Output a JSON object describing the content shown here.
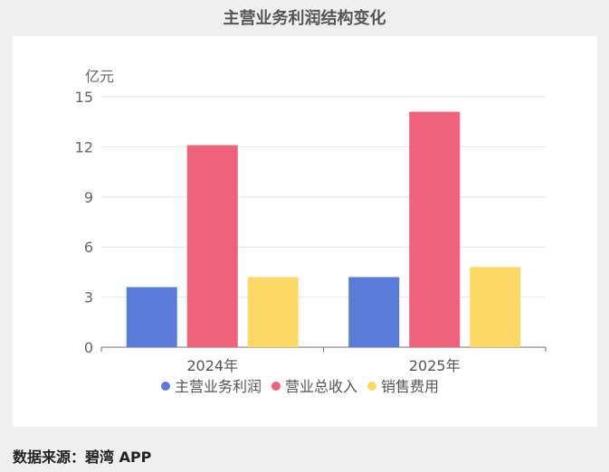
{
  "title": "主营业务利润结构变化",
  "source_text": "数据来源：碧湾 APP",
  "chart_data": {
    "type": "bar",
    "title": "主营业务利润结构变化",
    "unit_label": "亿元",
    "categories": [
      "2024年",
      "2025年"
    ],
    "series": [
      {
        "name": "主营业务利润",
        "values": [
          3.6,
          4.2
        ],
        "color": "#5b7bd8"
      },
      {
        "name": "营业总收入",
        "values": [
          12.1,
          14.1
        ],
        "color": "#f0617c"
      },
      {
        "name": "销售费用",
        "values": [
          4.2,
          4.8
        ],
        "color": "#fdd865"
      }
    ],
    "ylim": [
      0,
      15
    ],
    "yticks": [
      0,
      3,
      6,
      9,
      12,
      15
    ],
    "grid": true,
    "legend_position": "bottom"
  }
}
